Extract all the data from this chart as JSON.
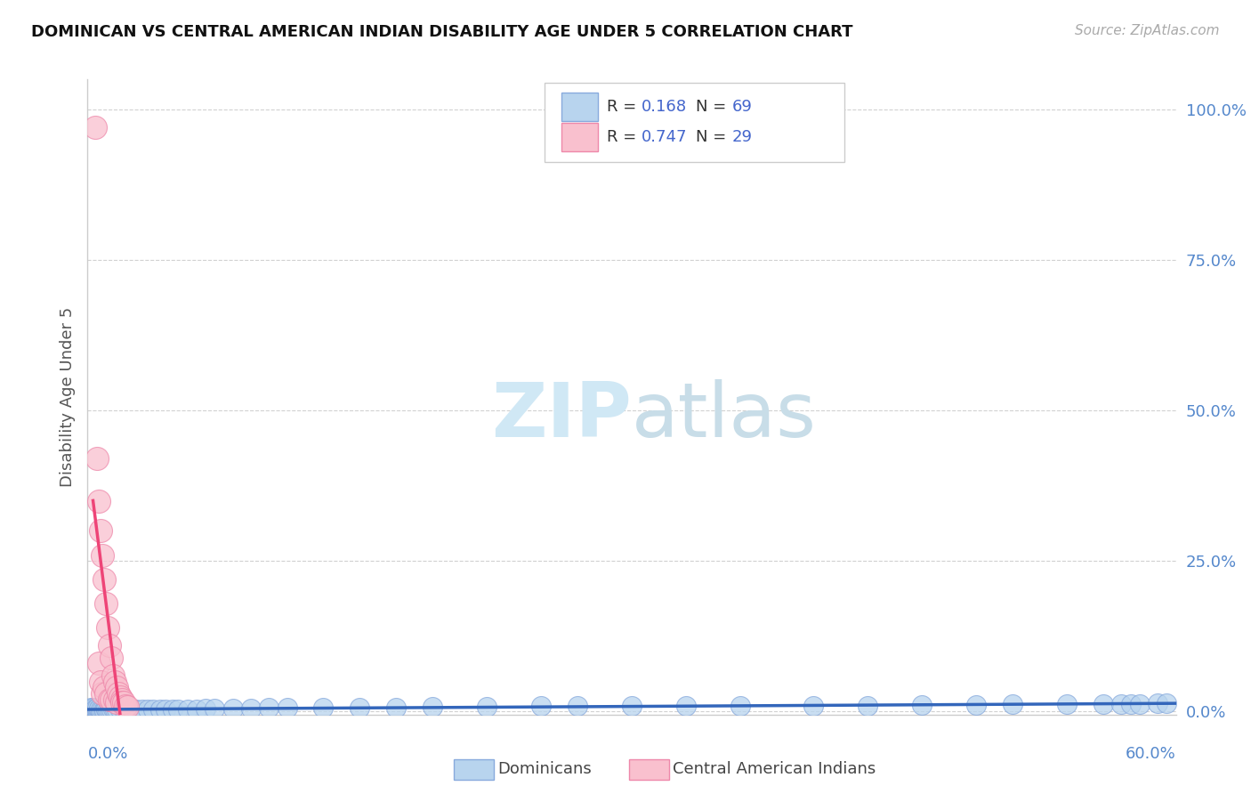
{
  "title": "DOMINICAN VS CENTRAL AMERICAN INDIAN DISABILITY AGE UNDER 5 CORRELATION CHART",
  "source": "Source: ZipAtlas.com",
  "ylabel": "Disability Age Under 5",
  "ytick_labels": [
    "0.0%",
    "25.0%",
    "50.0%",
    "75.0%",
    "100.0%"
  ],
  "ytick_values": [
    0.0,
    0.25,
    0.5,
    0.75,
    1.0
  ],
  "xlim": [
    0.0,
    0.6
  ],
  "ylim": [
    -0.005,
    1.05
  ],
  "dominicans_R": 0.168,
  "dominicans_N": 69,
  "central_american_R": 0.747,
  "central_american_N": 29,
  "dominican_fill": "#b8d4ee",
  "dominican_edge": "#88aadd",
  "central_fill": "#f9c0ce",
  "central_edge": "#ee88aa",
  "trend_dominican": "#3366bb",
  "trend_central": "#ee4477",
  "dashed_color": "#ddaacc",
  "watermark_color": "#d0e8f5",
  "r_text_color": "#4466cc",
  "n_text_color": "#333333",
  "title_color": "#111111",
  "source_color": "#aaaaaa",
  "axis_tick_color": "#5588cc",
  "ylabel_color": "#555555",
  "bg_color": "#ffffff",
  "grid_color": "#cccccc",
  "dominicans_x": [
    0.001,
    0.001,
    0.002,
    0.002,
    0.003,
    0.003,
    0.003,
    0.004,
    0.004,
    0.005,
    0.005,
    0.005,
    0.006,
    0.006,
    0.007,
    0.007,
    0.008,
    0.009,
    0.009,
    0.01,
    0.01,
    0.011,
    0.012,
    0.013,
    0.014,
    0.015,
    0.016,
    0.018,
    0.02,
    0.022,
    0.025,
    0.027,
    0.03,
    0.033,
    0.036,
    0.04,
    0.043,
    0.047,
    0.05,
    0.055,
    0.06,
    0.065,
    0.07,
    0.08,
    0.09,
    0.1,
    0.11,
    0.13,
    0.15,
    0.17,
    0.19,
    0.22,
    0.25,
    0.27,
    0.3,
    0.33,
    0.36,
    0.4,
    0.43,
    0.46,
    0.49,
    0.51,
    0.54,
    0.56,
    0.57,
    0.575,
    0.58,
    0.59,
    0.595
  ],
  "dominicans_y": [
    0.003,
    0.005,
    0.003,
    0.006,
    0.002,
    0.004,
    0.006,
    0.003,
    0.005,
    0.002,
    0.004,
    0.006,
    0.003,
    0.005,
    0.002,
    0.004,
    0.003,
    0.004,
    0.002,
    0.003,
    0.005,
    0.003,
    0.004,
    0.003,
    0.005,
    0.003,
    0.004,
    0.003,
    0.004,
    0.003,
    0.004,
    0.003,
    0.004,
    0.003,
    0.004,
    0.003,
    0.004,
    0.003,
    0.004,
    0.004,
    0.004,
    0.005,
    0.005,
    0.005,
    0.005,
    0.006,
    0.006,
    0.007,
    0.007,
    0.007,
    0.008,
    0.008,
    0.009,
    0.009,
    0.009,
    0.009,
    0.01,
    0.01,
    0.01,
    0.011,
    0.011,
    0.012,
    0.012,
    0.013,
    0.013,
    0.013,
    0.013,
    0.014,
    0.014
  ],
  "central_x": [
    0.004,
    0.005,
    0.006,
    0.006,
    0.007,
    0.007,
    0.008,
    0.008,
    0.009,
    0.009,
    0.01,
    0.01,
    0.011,
    0.012,
    0.012,
    0.013,
    0.013,
    0.014,
    0.015,
    0.015,
    0.016,
    0.016,
    0.017,
    0.018,
    0.019,
    0.019,
    0.02,
    0.021,
    0.022
  ],
  "central_y": [
    0.97,
    0.42,
    0.35,
    0.08,
    0.3,
    0.05,
    0.26,
    0.03,
    0.22,
    0.04,
    0.18,
    0.03,
    0.14,
    0.11,
    0.02,
    0.09,
    0.02,
    0.06,
    0.05,
    0.02,
    0.04,
    0.015,
    0.03,
    0.025,
    0.02,
    0.015,
    0.015,
    0.01,
    0.008
  ]
}
